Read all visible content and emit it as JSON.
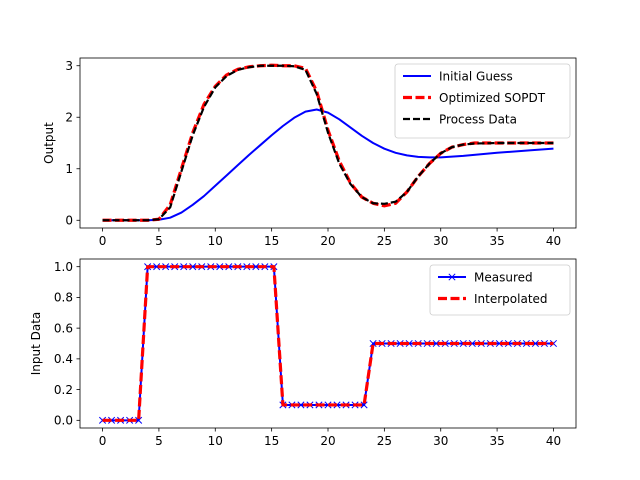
{
  "chart_data": [
    {
      "type": "line",
      "ylabel": "Output",
      "xlim": [
        -2,
        42
      ],
      "ylim": [
        -0.15,
        3.15
      ],
      "xticks": [
        0,
        5,
        10,
        15,
        20,
        25,
        30,
        35,
        40
      ],
      "yticks": [
        0,
        1,
        2,
        3
      ],
      "legend_position": "top-right",
      "grid": false,
      "series": [
        {
          "name": "Initial Guess",
          "color": "#0000ff",
          "dash": "solid",
          "x": [
            0,
            4,
            5,
            6,
            7,
            8,
            9,
            10,
            11,
            12,
            13,
            14,
            15,
            16,
            17,
            18,
            19,
            20,
            21,
            22,
            23,
            24,
            25,
            26,
            27,
            28,
            29,
            30,
            32,
            35,
            38,
            40
          ],
          "y": [
            0,
            0,
            0.01,
            0.05,
            0.15,
            0.3,
            0.47,
            0.67,
            0.87,
            1.07,
            1.27,
            1.46,
            1.65,
            1.83,
            1.99,
            2.11,
            2.15,
            2.09,
            1.96,
            1.8,
            1.64,
            1.5,
            1.39,
            1.31,
            1.26,
            1.23,
            1.22,
            1.22,
            1.25,
            1.31,
            1.36,
            1.39
          ]
        },
        {
          "name": "Optimized SOPDT",
          "color": "#ff0000",
          "dash": "thick-dashed",
          "x": [
            0,
            4,
            5,
            6,
            7,
            8,
            9,
            10,
            11,
            12,
            13,
            14,
            15,
            16,
            17,
            18,
            19,
            20,
            21,
            22,
            23,
            24,
            25,
            26,
            27,
            28,
            29,
            30,
            31,
            32,
            33,
            35,
            40
          ],
          "y": [
            0,
            0,
            0.02,
            0.3,
            1.0,
            1.7,
            2.25,
            2.6,
            2.82,
            2.93,
            2.98,
            3.0,
            3.01,
            3.0,
            3.0,
            2.95,
            2.5,
            1.75,
            1.15,
            0.72,
            0.45,
            0.33,
            0.28,
            0.33,
            0.55,
            0.85,
            1.1,
            1.3,
            1.42,
            1.47,
            1.5,
            1.5,
            1.5
          ]
        },
        {
          "name": "Process Data",
          "color": "#000000",
          "dash": "dashed",
          "x": [
            0,
            4,
            5,
            6,
            7,
            8,
            9,
            10,
            11,
            12,
            13,
            14,
            15,
            16,
            17,
            18,
            19,
            20,
            21,
            22,
            23,
            24,
            25,
            26,
            27,
            28,
            29,
            30,
            31,
            32,
            33,
            35,
            40
          ],
          "y": [
            0,
            0,
            0.02,
            0.25,
            0.95,
            1.65,
            2.2,
            2.58,
            2.8,
            2.92,
            2.97,
            3.0,
            3.0,
            3.0,
            2.99,
            2.92,
            2.45,
            1.7,
            1.1,
            0.7,
            0.45,
            0.33,
            0.32,
            0.36,
            0.55,
            0.85,
            1.1,
            1.3,
            1.42,
            1.47,
            1.49,
            1.5,
            1.5
          ]
        }
      ]
    },
    {
      "type": "line",
      "ylabel": "Input Data",
      "xlim": [
        -2,
        42
      ],
      "ylim": [
        -0.05,
        1.05
      ],
      "xticks": [
        0,
        5,
        10,
        15,
        20,
        25,
        30,
        35,
        40
      ],
      "yticks": [
        0.0,
        0.2,
        0.4,
        0.6,
        0.8,
        1.0
      ],
      "ytick_labels": [
        "0.0",
        "0.2",
        "0.4",
        "0.6",
        "0.8",
        "1.0"
      ],
      "legend_position": "top-right",
      "grid": false,
      "series": [
        {
          "name": "Measured",
          "color": "#0000ff",
          "dash": "solid",
          "marker": "x",
          "x": [
            0,
            0.8,
            1.6,
            2.4,
            3.2,
            4.0,
            4.8,
            5.6,
            6.4,
            7.2,
            8.0,
            8.8,
            9.6,
            10.4,
            11.2,
            12.0,
            12.8,
            13.6,
            14.4,
            15.2,
            16.0,
            16.8,
            17.6,
            18.4,
            19.2,
            20.0,
            20.8,
            21.6,
            22.4,
            23.2,
            24.0,
            24.8,
            25.6,
            26.4,
            27.2,
            28.0,
            28.8,
            29.6,
            30.4,
            31.2,
            32.0,
            32.8,
            33.6,
            34.4,
            35.2,
            36.0,
            36.8,
            37.6,
            38.4,
            39.2,
            40.0
          ],
          "y": [
            0,
            0,
            0,
            0,
            0,
            1,
            1,
            1,
            1,
            1,
            1,
            1,
            1,
            1,
            1,
            1,
            1,
            1,
            1,
            1,
            0.1,
            0.1,
            0.1,
            0.1,
            0.1,
            0.1,
            0.1,
            0.1,
            0.1,
            0.1,
            0.5,
            0.5,
            0.5,
            0.5,
            0.5,
            0.5,
            0.5,
            0.5,
            0.5,
            0.5,
            0.5,
            0.5,
            0.5,
            0.5,
            0.5,
            0.5,
            0.5,
            0.5,
            0.5,
            0.5,
            0.5
          ]
        },
        {
          "name": "Interpolated",
          "color": "#ff0000",
          "dash": "thick-dashed",
          "x": [
            0,
            3.2,
            4.0,
            15.2,
            16.0,
            23.2,
            24.0,
            40.0
          ],
          "y": [
            0,
            0,
            1,
            1,
            0.1,
            0.1,
            0.5,
            0.5
          ]
        }
      ]
    }
  ]
}
